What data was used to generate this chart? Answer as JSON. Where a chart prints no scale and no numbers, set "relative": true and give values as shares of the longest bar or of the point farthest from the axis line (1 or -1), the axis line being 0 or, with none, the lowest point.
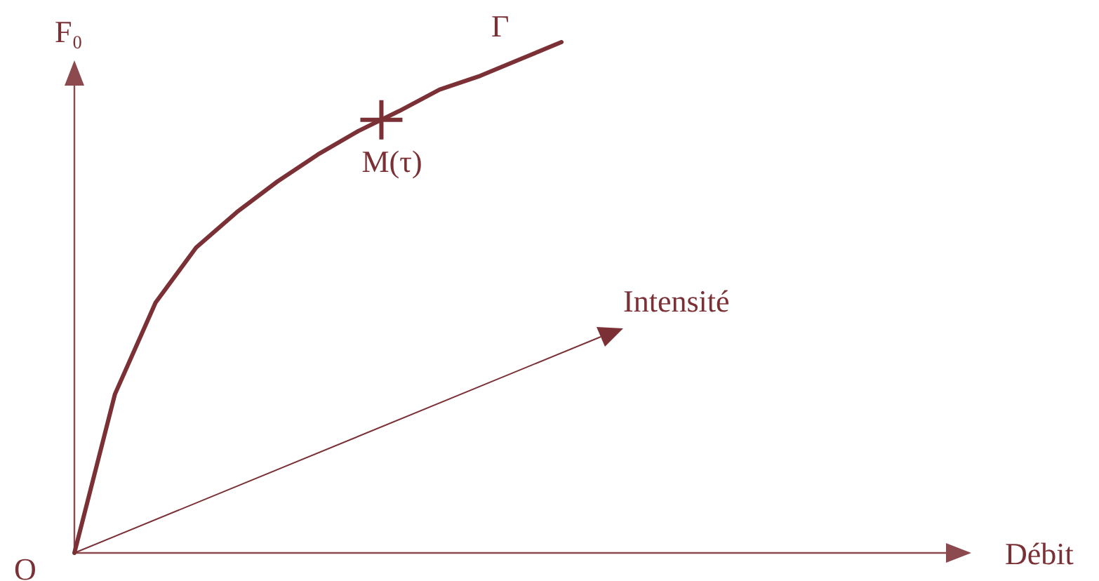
{
  "chart_data": {
    "type": "line",
    "relative": true,
    "ylabel": "F₀",
    "marker": "none",
    "categories": [
      null,
      null,
      null,
      null,
      null,
      null,
      null,
      null,
      null,
      null,
      null,
      null,
      null
    ],
    "series": [
      {
        "name": "Γ",
        "color": "#7b3035",
        "values": [
          0,
          0.311,
          0.49,
          0.598,
          0.667,
          0.727,
          0.78,
          0.826,
          0.865,
          0.907,
          0.934,
          0.967,
          1
        ]
      }
    ],
    "annotations": [
      {
        "text": "M(τ)",
        "y": 0.848
      },
      "Intensité",
      "O",
      "Débit"
    ]
  }
}
